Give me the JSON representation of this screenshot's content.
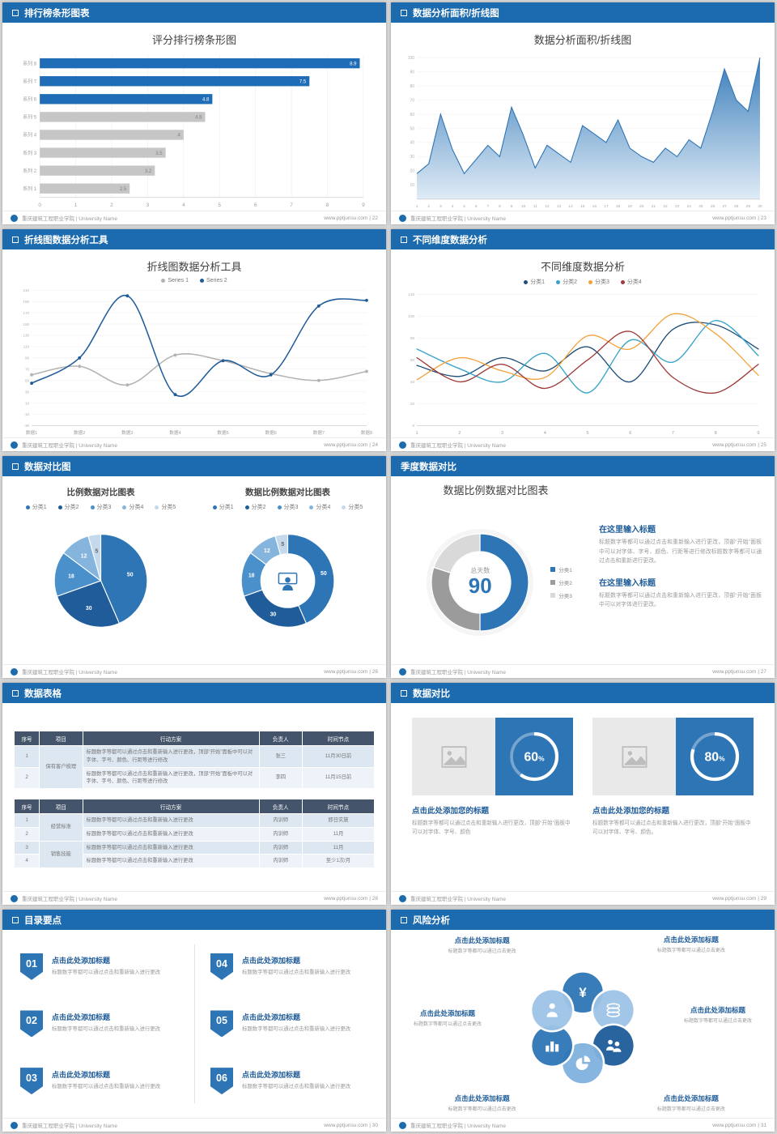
{
  "colors": {
    "accent": "#1c6bae",
    "bar_blue": "#1f6db6",
    "bar_gray": "#c6c6c6",
    "table_header": "#44546a"
  },
  "footer": {
    "org": "重庆建筑工程职业学院 | University Name",
    "site": "www.pptjunsu.com"
  },
  "slides": {
    "ranking_bar": {
      "header": "排行榜条形图表",
      "page": "22",
      "title": "评分排行榜条形图",
      "chart": {
        "type": "bar",
        "orientation": "horizontal",
        "categories": [
          "系列 8",
          "系列 7",
          "系列 6",
          "系列 5",
          "系列 4",
          "系列 3",
          "系列 2",
          "系列 1"
        ],
        "values": [
          8.9,
          7.5,
          4.8,
          4.6,
          4,
          3.5,
          3.2,
          2.5
        ],
        "colors": [
          "#1f6db6",
          "#1f6db6",
          "#1f6db6",
          "#c6c6c6",
          "#c6c6c6",
          "#c6c6c6",
          "#c6c6c6",
          "#c6c6c6"
        ],
        "xlim": [
          0,
          9
        ]
      }
    },
    "area_line": {
      "header": "数据分析面积/折线图",
      "page": "23",
      "title": "数据分析面积/折线图",
      "chart": {
        "type": "area",
        "x": [
          1,
          2,
          3,
          4,
          5,
          6,
          7,
          8,
          9,
          10,
          11,
          12,
          13,
          14,
          15,
          16,
          17,
          18,
          19,
          20,
          21,
          22,
          23,
          24,
          25,
          26,
          27,
          28,
          29,
          30
        ],
        "values": [
          18,
          25,
          60,
          35,
          18,
          28,
          38,
          30,
          65,
          45,
          22,
          38,
          32,
          26,
          52,
          46,
          40,
          56,
          36,
          30,
          26,
          36,
          30,
          42,
          36,
          62,
          92,
          70,
          62,
          100
        ],
        "ylim": [
          0,
          100
        ],
        "ytick_step": 10,
        "line_color": "#2e75b6",
        "fill_from": "#2e75b6",
        "fill_to": "#dbe9f5"
      }
    },
    "line_tool": {
      "header": "折线图数据分析工具",
      "page": "24",
      "title": "折线图数据分析工具",
      "chart": {
        "type": "line",
        "categories": [
          "数据1",
          "数据2",
          "数据3",
          "数据4",
          "数据5",
          "数据6",
          "数据7",
          "数据8"
        ],
        "series": [
          {
            "name": "Series 1",
            "color": "#b3b3b3",
            "values": [
              60,
              75,
              42,
              95,
              85,
              62,
              50,
              66
            ]
          },
          {
            "name": "Series 2",
            "color": "#1f5c99",
            "values": [
              45,
              90,
              200,
              25,
              85,
              60,
              182,
              192
            ]
          }
        ],
        "ylim": [
          -30,
          210
        ],
        "ytick_step": 20
      }
    },
    "dimension": {
      "header": "不同维度数据分析",
      "page": "25",
      "title": "不同维度数据分析",
      "chart": {
        "type": "line",
        "x": [
          1,
          2,
          3,
          4,
          5,
          6,
          7,
          8,
          9
        ],
        "series": [
          {
            "name": "分类1",
            "color": "#1f4e79",
            "values": [
              55,
              45,
              62,
              50,
              72,
              40,
              88,
              92,
              70
            ]
          },
          {
            "name": "分类2",
            "color": "#35a3c9",
            "values": [
              70,
              52,
              40,
              66,
              30,
              78,
              58,
              96,
              64
            ]
          },
          {
            "name": "分类3",
            "color": "#f2a33c",
            "values": [
              42,
              62,
              50,
              44,
              82,
              70,
              102,
              84,
              46
            ]
          },
          {
            "name": "分类4",
            "color": "#9e3a38",
            "values": [
              62,
              40,
              56,
              34,
              60,
              86,
              44,
              30,
              56
            ]
          }
        ],
        "ylim": [
          0,
          120
        ],
        "ytick_step": 20
      }
    },
    "pie_compare": {
      "header": "数据对比图",
      "page": "26",
      "left": {
        "title": "比例数据对比图表",
        "chart": {
          "type": "pie",
          "labels": [
            "分类1",
            "分类2",
            "分类3",
            "分类4",
            "分类5"
          ],
          "values": [
            50,
            30,
            18,
            12,
            5
          ],
          "colors": [
            "#2e75b6",
            "#1f5c99",
            "#4a90ca",
            "#85b5dd",
            "#c4d9ec"
          ]
        }
      },
      "right": {
        "title": "数据比例数据对比图表",
        "chart": {
          "type": "donut",
          "labels": [
            "分类1",
            "分类2",
            "分类3",
            "分类4",
            "分类5"
          ],
          "values": [
            50,
            30,
            18,
            12,
            5
          ],
          "colors": [
            "#2e75b6",
            "#1f5c99",
            "#4a90ca",
            "#85b5dd",
            "#c4d9ec"
          ],
          "center_icon": "presenter-icon"
        }
      }
    },
    "quarter": {
      "header": "季度数据对比",
      "page": "27",
      "title": "数据比例数据对比图表",
      "chart": {
        "type": "donut",
        "labels": [
          "分类1",
          "分类2",
          "分类3"
        ],
        "values": [
          50,
          30,
          20
        ],
        "colors": [
          "#2e75b6",
          "#9b9b9b",
          "#d9d9d9"
        ],
        "center_label": "总天数",
        "center_value": "90"
      },
      "sections": [
        {
          "title": "在这里输入标题",
          "body": "标题数字等都可以通过点击和重新输入进行更改，顶部“开始”面板中可以对字体、字号、颜色、行距等进行修改标题数字等都可以通过点击和重新进行更改。"
        },
        {
          "title": "在这里输入标题",
          "body": "标题数字等都可以通过点击和重新输入进行更改，顶部“开始”面板中可以对字体进行更改。"
        }
      ]
    },
    "table": {
      "header": "数据表格",
      "page": "28",
      "tables": [
        {
          "columns": [
            "序号",
            "项目",
            "行动方案",
            "负责人",
            "时间节点"
          ],
          "rows": [
            {
              "no": "1",
              "project": "保有客户梳理",
              "span": 2,
              "action": "标题数字等都可以通过点击和重新输入进行更改，顶部“开始”面板中可以对字体、字号、颜色、行距等进行修改",
              "owner": "张三",
              "time": "11月30日前"
            },
            {
              "no": "2",
              "action": "标题数字等都可以通过点击和重新输入进行更改，顶部“开始”面板中可以对字体、字号、颜色、行距等进行修改",
              "owner": "李四",
              "time": "11月15日前"
            }
          ]
        },
        {
          "columns": [
            "序号",
            "项目",
            "行动方案",
            "负责人",
            "时间节点"
          ],
          "rows": [
            {
              "no": "1",
              "project": "经营标准",
              "span": 2,
              "action": "标题数字等都可以通过点击和重新输入进行更改",
              "owner": "内训师",
              "time": "即日实施"
            },
            {
              "no": "2",
              "action": "标题数字等都可以通过点击和重新输入进行更改",
              "owner": "内训师",
              "time": "11月"
            },
            {
              "no": "3",
              "project": "销售技能",
              "span": 2,
              "action": "标题数字等都可以通过点击和重新输入进行更改",
              "owner": "内训师",
              "time": "11月"
            },
            {
              "no": "4",
              "action": "标题数字等都可以通过点击和重新输入进行更改",
              "owner": "内训师",
              "time": "至少1次/月"
            }
          ]
        }
      ]
    },
    "progress": {
      "header": "数据对比",
      "page": "29",
      "cards": [
        {
          "percent": 60,
          "title": "点击此处添加您的标题",
          "body": "标题数字等都可以通过点击和重新输入进行更改，顶部“开始”面板中可以对字体、字号、颜色"
        },
        {
          "percent": 80,
          "title": "点击此处添加您的标题",
          "body": "标题数字等都可以通过点击和重新输入进行更改，顶部“开始”面板中可以对字体、字号、颜色。"
        }
      ]
    },
    "catalog": {
      "header": "目录要点",
      "page": "30",
      "items": [
        {
          "num": "01",
          "title": "点击此处添加标题",
          "desc": "标题数字等都可以通过点击和重新输入进行更改"
        },
        {
          "num": "02",
          "title": "点击此处添加标题",
          "desc": "标题数字等都可以通过点击和重新输入进行更改"
        },
        {
          "num": "03",
          "title": "点击此处添加标题",
          "desc": "标题数字等都可以通过点击和重新输入进行更改"
        },
        {
          "num": "04",
          "title": "点击此处添加标题",
          "desc": "标题数字等都可以通过点击和重新输入进行更改"
        },
        {
          "num": "05",
          "title": "点击此处添加标题",
          "desc": "标题数字等都可以通过点击和重新输入进行更改"
        },
        {
          "num": "06",
          "title": "点击此处添加标题",
          "desc": "标题数字等都可以通过点击和重新输入进行更改"
        }
      ]
    },
    "risk": {
      "header": "风险分析",
      "page": "31",
      "petals": [
        {
          "icon": "money-bag-icon",
          "color": "#2e75b6"
        },
        {
          "icon": "coins-icon",
          "color": "#9dc3e6"
        },
        {
          "icon": "people-icon",
          "color": "#1f5c99"
        },
        {
          "icon": "pie-chart-icon",
          "color": "#7fb2de"
        },
        {
          "icon": "bar-chart-icon",
          "color": "#2e75b6"
        },
        {
          "icon": "person-icon",
          "color": "#9dc3e6"
        }
      ],
      "labels": [
        {
          "title": "点击此处添加标题",
          "desc": "标题数字等都可以通过点击更改"
        },
        {
          "title": "点击此处添加标题",
          "desc": "标题数字等都可以通过点击更改"
        },
        {
          "title": "点击此处添加标题",
          "desc": "标题数字等都可以通过点击更改"
        },
        {
          "title": "点击此处添加标题",
          "desc": "标题数字等都可以通过点击更改"
        },
        {
          "title": "点击此处添加标题",
          "desc": "标题数字等都可以通过点击更改"
        },
        {
          "title": "点击此处添加标题",
          "desc": "标题数字等都可以通过点击更改"
        }
      ]
    }
  }
}
